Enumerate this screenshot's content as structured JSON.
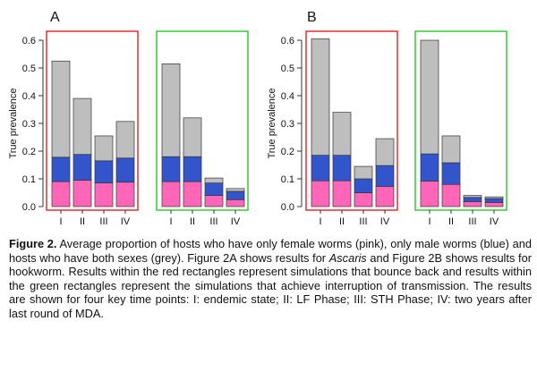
{
  "colors": {
    "female_only": "#ff66b8",
    "male_only": "#3355cc",
    "both_sexes": "#bebebe",
    "bounce_box": "#e03030",
    "interrupt_box": "#33cc33",
    "bar_outline": "#333333",
    "axis": "#333333"
  },
  "chart_data": [
    {
      "panel": "A",
      "type": "bar",
      "stacked": true,
      "ylabel": "True prevalence",
      "ylim": [
        0,
        0.6
      ],
      "yticks": [
        "0.0",
        "0.1",
        "0.2",
        "0.3",
        "0.4",
        "0.5",
        "0.6"
      ],
      "categories": [
        "I",
        "II",
        "III",
        "IV"
      ],
      "groups": [
        {
          "box": "red",
          "segments": {
            "female": [
              0.09,
              0.095,
              0.085,
              0.088
            ],
            "male": [
              0.088,
              0.093,
              0.08,
              0.087
            ],
            "both": [
              0.347,
              0.202,
              0.09,
              0.132
            ]
          }
        },
        {
          "box": "green",
          "segments": {
            "female": [
              0.09,
              0.09,
              0.04,
              0.025
            ],
            "male": [
              0.09,
              0.09,
              0.045,
              0.03
            ],
            "both": [
              0.335,
              0.14,
              0.018,
              0.01
            ]
          }
        }
      ]
    },
    {
      "panel": "B",
      "type": "bar",
      "stacked": true,
      "ylabel": "True prevalence",
      "ylim": [
        0,
        0.6
      ],
      "yticks": [
        "0.0",
        "0.1",
        "0.2",
        "0.3",
        "0.4",
        "0.5",
        "0.6"
      ],
      "categories": [
        "I",
        "II",
        "III",
        "IV"
      ],
      "groups": [
        {
          "box": "red",
          "segments": {
            "female": [
              0.093,
              0.093,
              0.05,
              0.073
            ],
            "male": [
              0.092,
              0.092,
              0.05,
              0.075
            ],
            "both": [
              0.42,
              0.155,
              0.045,
              0.097
            ]
          }
        },
        {
          "box": "green",
          "segments": {
            "female": [
              0.092,
              0.08,
              0.018,
              0.015
            ],
            "male": [
              0.098,
              0.078,
              0.015,
              0.014
            ],
            "both": [
              0.41,
              0.097,
              0.007,
              0.006
            ]
          }
        }
      ]
    }
  ],
  "caption": {
    "label": "Figure 2.",
    "part1": " Average proportion of hosts who have only female worms (pink), only male worms (blue) and hosts who have both sexes (grey). Figure 2A shows results for ",
    "italic": "Ascaris",
    "part2": " and Figure 2B shows results for hookworm. Results within the red rectangles represent simulations that bounce back and results within the green rectangles represent the simulations that achieve interruption of transmission. The results are shown for four key time points: I: endemic state; II: LF Phase; III: STH Phase; IV: two years after last round of MDA."
  }
}
